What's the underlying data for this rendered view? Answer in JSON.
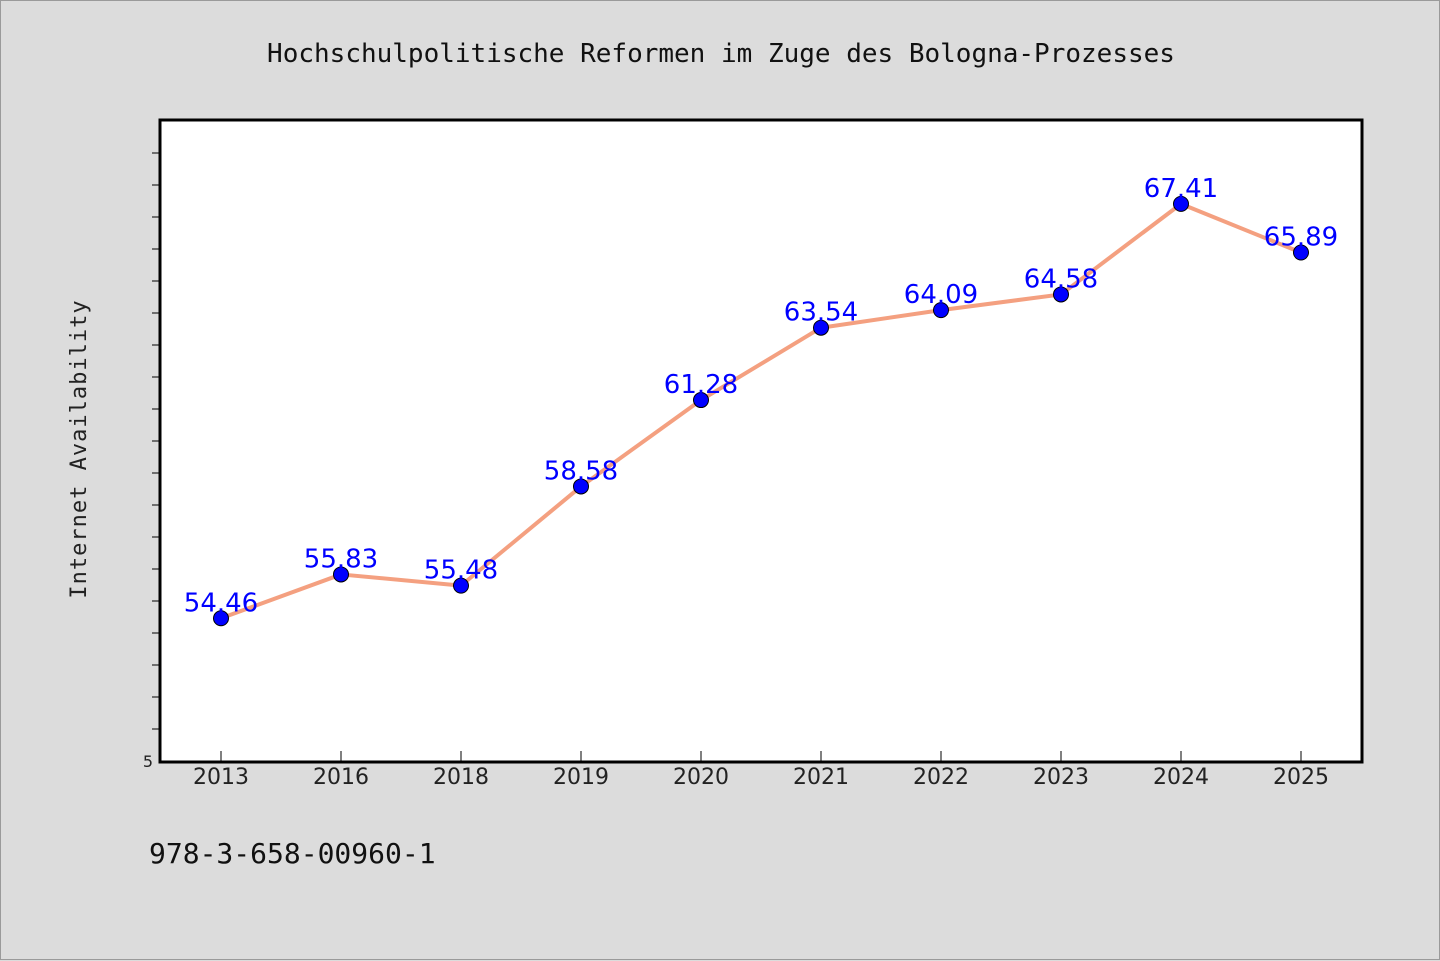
{
  "chart_data": {
    "type": "line",
    "title": "Hochschulpolitische Reformen im Zuge des Bologna-Prozesses",
    "xlabel": "",
    "ylabel": "Internet Availability",
    "categories": [
      "2013",
      "2016",
      "2018",
      "2019",
      "2020",
      "2021",
      "2022",
      "2023",
      "2024",
      "2025"
    ],
    "values": [
      54.46,
      55.83,
      55.48,
      58.58,
      61.28,
      63.54,
      64.09,
      64.58,
      67.41,
      65.89
    ],
    "data_labels": [
      "54.46",
      "55.83",
      "55.48",
      "58.58",
      "61.28",
      "63.54",
      "64.09",
      "64.58",
      "67.41",
      "65.89"
    ],
    "ylim": [
      50,
      70
    ],
    "ytick_labels": [
      "5"
    ],
    "grid": false,
    "legend": "none",
    "line_color": "#f4a080",
    "marker_color": "#0000ff",
    "label_color": "#0000ff"
  },
  "footer": {
    "isbn": "978-3-658-00960-1"
  }
}
